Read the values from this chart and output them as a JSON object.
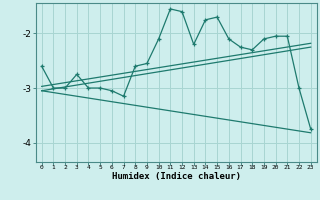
{
  "xlabel": "Humidex (Indice chaleur)",
  "ylabel": "",
  "background_color": "#ceeeed",
  "line_color": "#1e7a6e",
  "grid_color": "#a8d5d2",
  "x_data": [
    0,
    1,
    2,
    3,
    4,
    5,
    6,
    7,
    8,
    9,
    10,
    11,
    12,
    13,
    14,
    15,
    16,
    17,
    18,
    19,
    20,
    21,
    22,
    23
  ],
  "main_line": [
    -2.6,
    -3.0,
    -3.0,
    -2.75,
    -3.0,
    -3.0,
    -3.05,
    -3.15,
    -2.6,
    -2.55,
    -2.1,
    -1.55,
    -1.6,
    -2.2,
    -1.75,
    -1.7,
    -2.1,
    -2.25,
    -2.3,
    -2.1,
    -2.05,
    -2.05,
    -3.0,
    -3.75
  ],
  "reg_line1": [
    [
      0,
      -2.97
    ],
    [
      23,
      -2.18
    ]
  ],
  "reg_line2": [
    [
      0,
      -3.05
    ],
    [
      23,
      -2.25
    ]
  ],
  "reg_line3": [
    [
      0,
      -3.05
    ],
    [
      23,
      -3.82
    ]
  ],
  "ylim": [
    -4.35,
    -1.45
  ],
  "xlim": [
    -0.5,
    23.5
  ],
  "yticks": [
    -4,
    -3,
    -2
  ],
  "xticks": [
    0,
    1,
    2,
    3,
    4,
    5,
    6,
    7,
    8,
    9,
    10,
    11,
    12,
    13,
    14,
    15,
    16,
    17,
    18,
    19,
    20,
    21,
    22,
    23
  ]
}
